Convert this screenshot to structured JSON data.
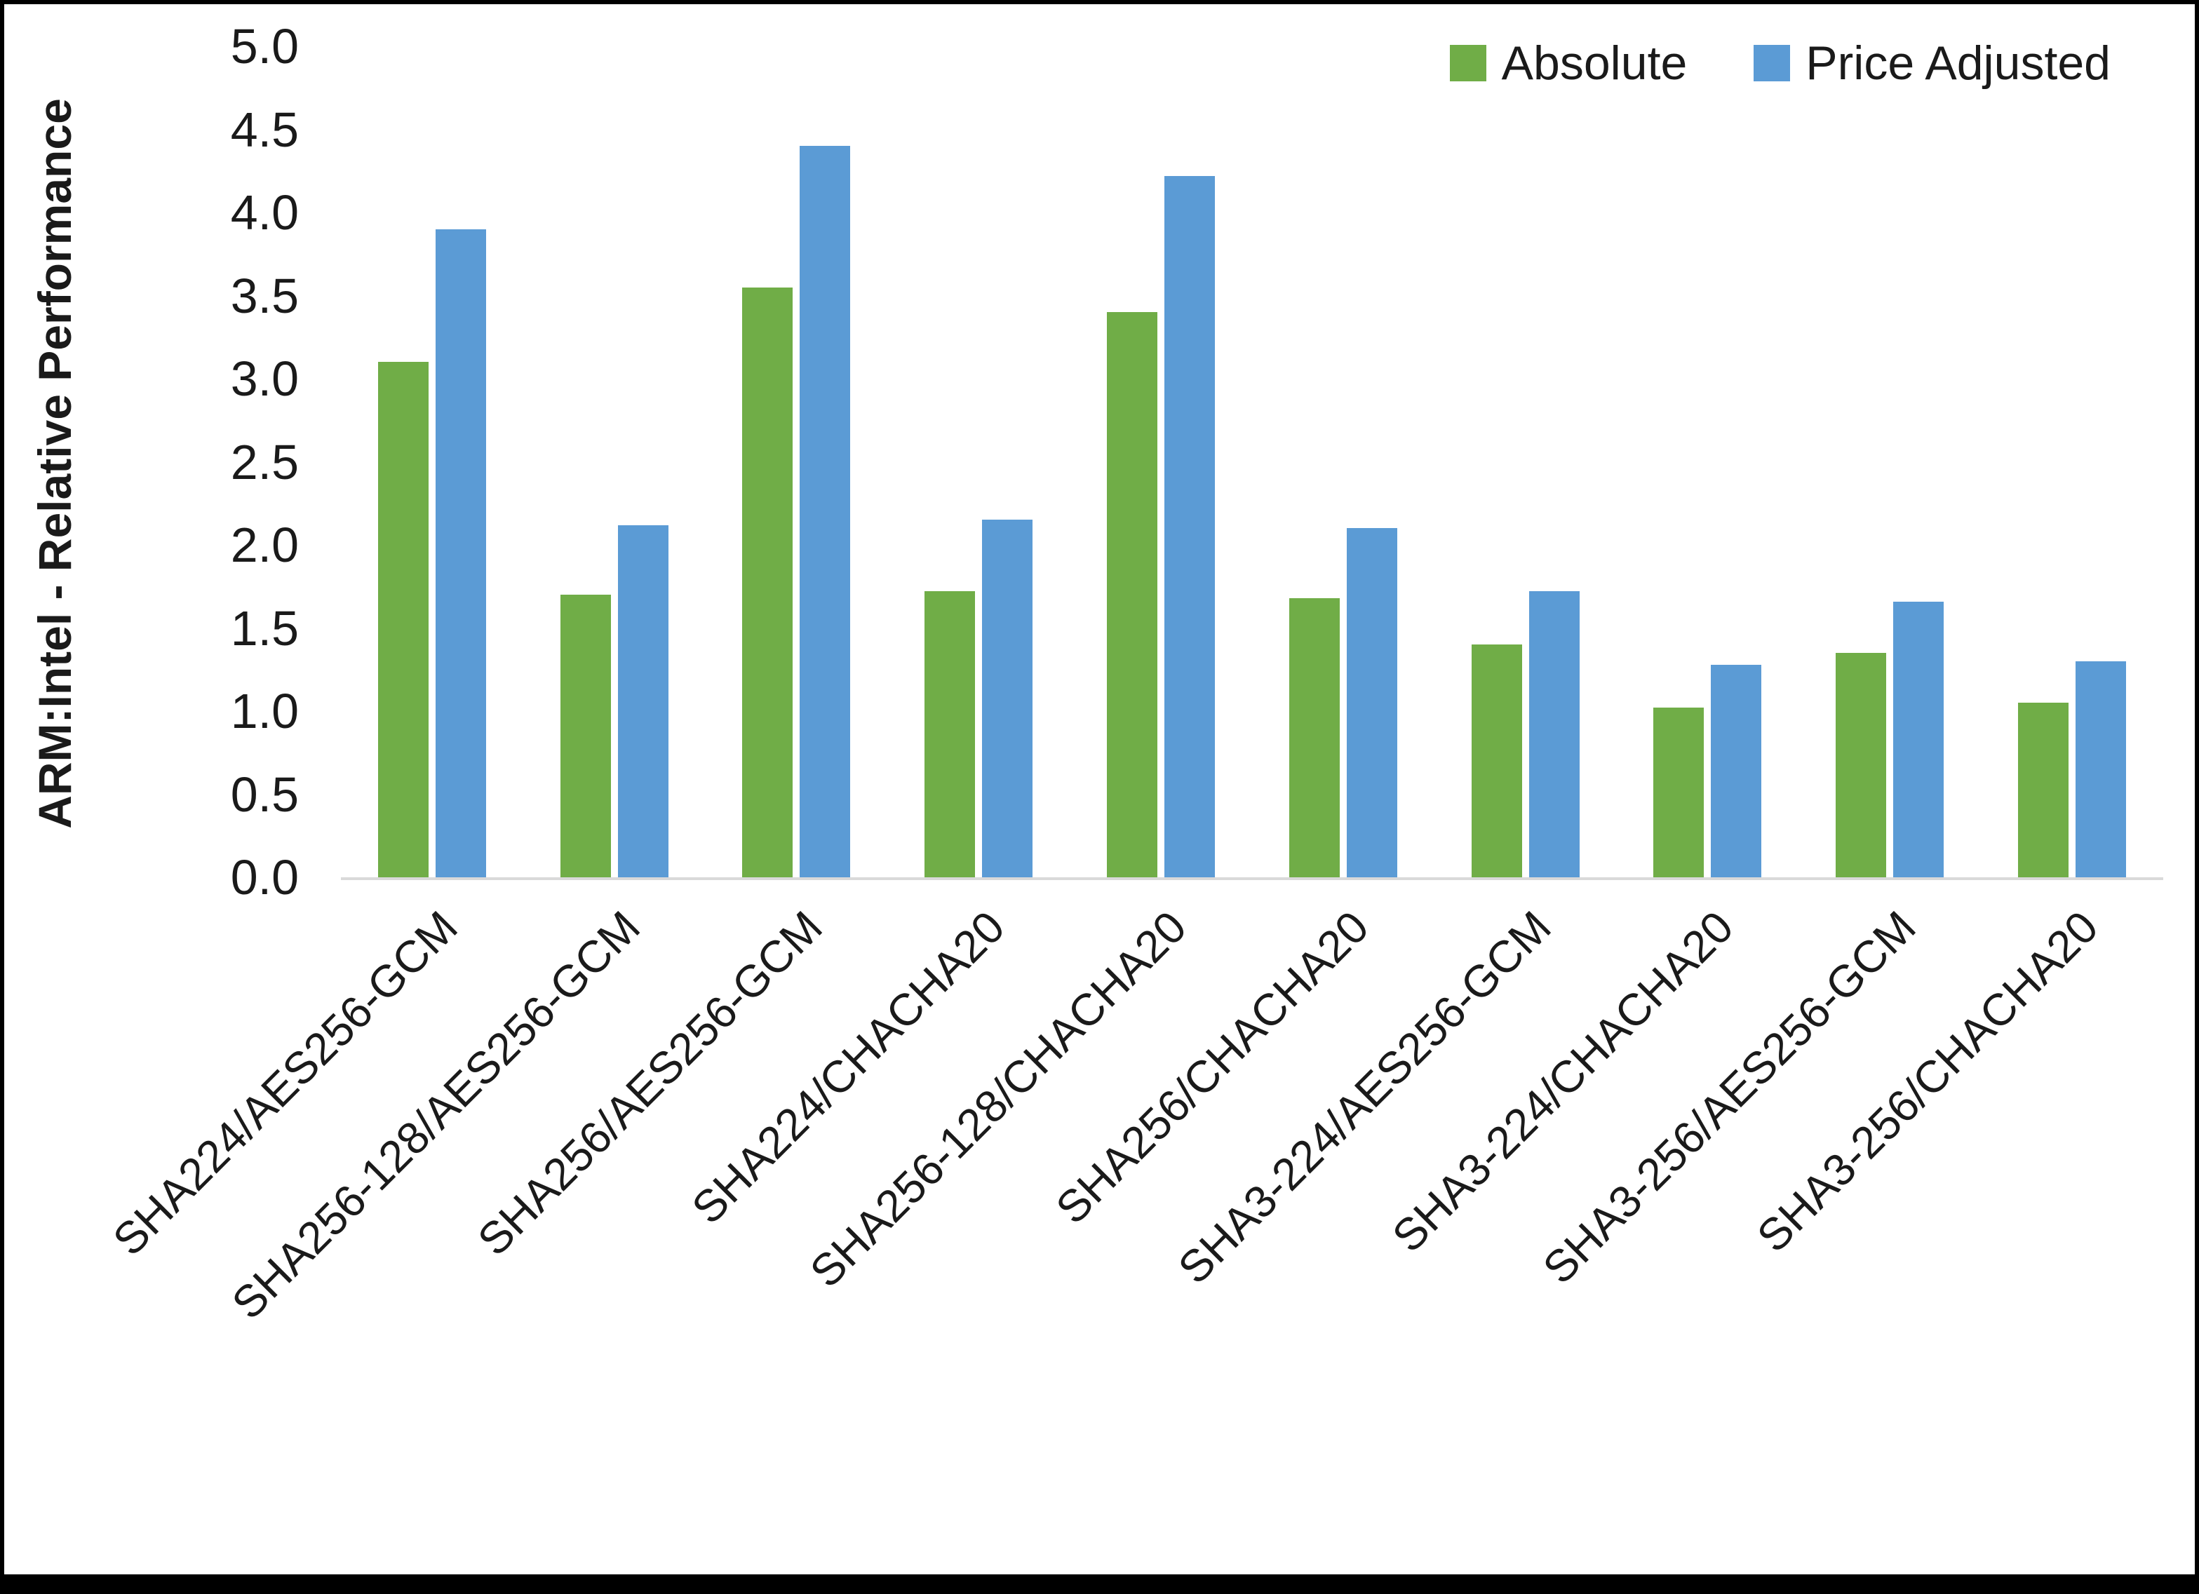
{
  "chart_data": {
    "type": "bar",
    "title": "",
    "xlabel": "",
    "ylabel": "ARM:Intel - Relative Performance",
    "ylim": [
      0,
      5
    ],
    "ytick_step": 0.5,
    "grid": false,
    "legend_position": "top-right",
    "categories": [
      "SHA224/AES256-GCM",
      "SHA256-128/AES256-GCM",
      "SHA256/AES256-GCM",
      "SHA224/CHACHA20",
      "SHA256-128/CHACHA20",
      "SHA256/CHACHA20",
      "SHA3-224/AES256-GCM",
      "SHA3-224/CHACHA20",
      "SHA3-256/AES256-GCM",
      "SHA3-256/CHACHA20"
    ],
    "series": [
      {
        "name": "Absolute",
        "color": "#70AD47",
        "values": [
          3.1,
          1.7,
          3.55,
          1.72,
          3.4,
          1.68,
          1.4,
          1.02,
          1.35,
          1.05
        ]
      },
      {
        "name": "Price Adjusted",
        "color": "#5B9BD5",
        "values": [
          3.9,
          2.12,
          4.4,
          2.15,
          4.22,
          2.1,
          1.72,
          1.28,
          1.66,
          1.3
        ]
      }
    ],
    "colors": {
      "axis_line": "#d9d9d9",
      "text": "#1a1a1a",
      "frame_border": "#000000"
    }
  }
}
